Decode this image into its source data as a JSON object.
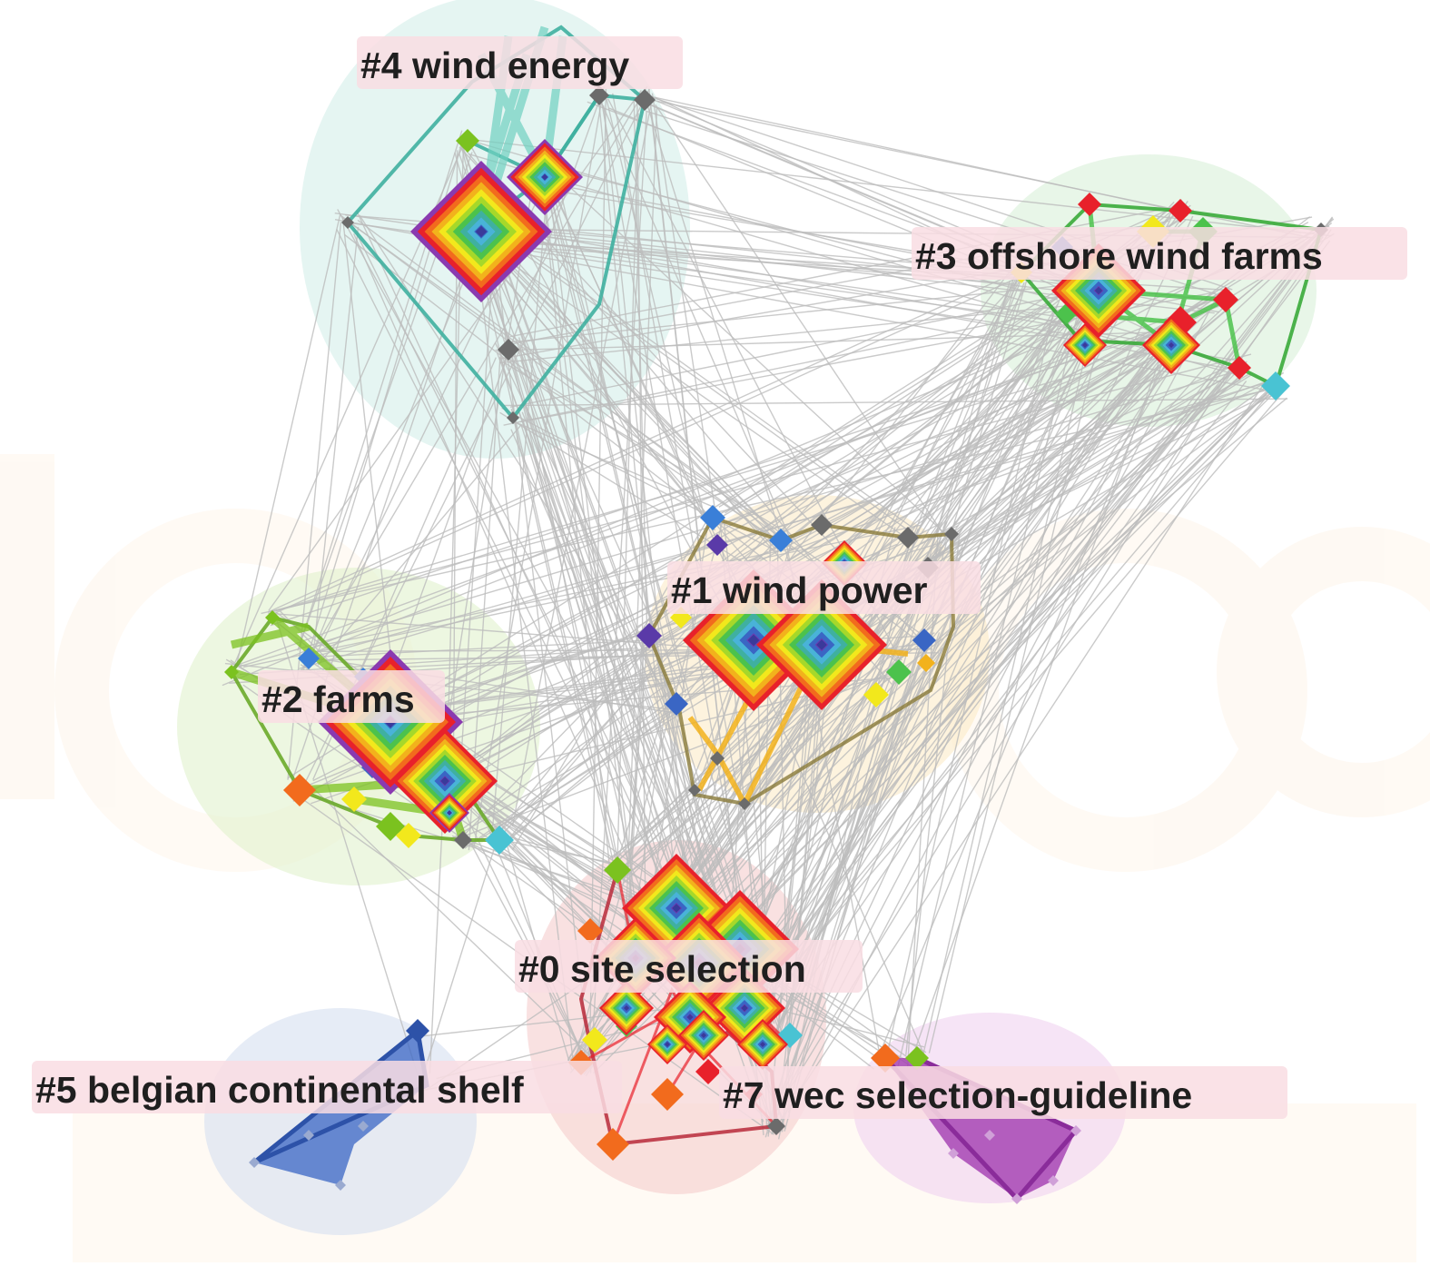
{
  "background": "#ffffff",
  "edge_color": "#bdbdbd",
  "clusters": [
    {
      "id": 0,
      "label": "#0 site selection",
      "color": "#e8212b",
      "halo": "#f4c9c9"
    },
    {
      "id": 1,
      "label": "#1 wind power",
      "color": "#f2b21c",
      "halo": "#fbe9c2"
    },
    {
      "id": 2,
      "label": "#2 farms",
      "color": "#7bc21f",
      "halo": "#dff0c8"
    },
    {
      "id": 3,
      "label": "#3 offshore wind farms",
      "color": "#3aab3a",
      "halo": "#d6efd6"
    },
    {
      "id": 4,
      "label": "#4 wind energy",
      "color": "#3fb0a0",
      "halo": "#cfece7"
    },
    {
      "id": 5,
      "label": "#5 belgian continental shelf",
      "color": "#3a66c4",
      "halo": "#d5dff0"
    },
    {
      "id": 7,
      "label": "#7 wec selection-guideline",
      "color": "#a23cb0",
      "halo": "#f0d2f0"
    }
  ],
  "node_ring_colors": [
    "#e8212b",
    "#f26b1d",
    "#f2b21c",
    "#f2e81c",
    "#a6d82a",
    "#4cc24c",
    "#3fb0a0",
    "#49b3d8",
    "#3a66c4",
    "#6b3ab0"
  ],
  "small_node_colors": [
    "#6b6b6b",
    "#e8212b",
    "#f26b1d",
    "#f2e81c",
    "#7bc21f",
    "#4cc24c",
    "#49c3d3",
    "#3a7fd8",
    "#5a3aa8"
  ]
}
